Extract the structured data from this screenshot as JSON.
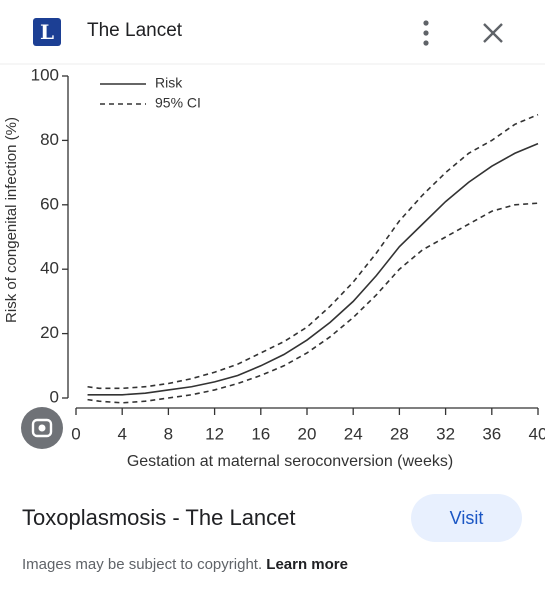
{
  "header": {
    "logo_letter": "L",
    "source": "The Lancet"
  },
  "chart_data": {
    "type": "line",
    "xlabel": "Gestation at maternal seroconversion (weeks)",
    "ylabel": "Risk of congenital infection (%)",
    "x": [
      1,
      2,
      4,
      6,
      8,
      10,
      12,
      14,
      16,
      18,
      20,
      22,
      24,
      26,
      28,
      30,
      32,
      34,
      36,
      38,
      40
    ],
    "series": [
      {
        "name": "Risk",
        "color": "#333333",
        "style": "solid",
        "values": [
          1,
          1,
          1,
          1.5,
          2.5,
          3.5,
          5,
          7,
          10,
          13.5,
          18,
          23.5,
          30,
          38,
          47,
          54,
          61,
          67,
          72,
          76,
          79
        ]
      },
      {
        "name": "95% CI",
        "color": "#333333",
        "style": "dashed",
        "values": [
          3.5,
          3,
          3,
          3.5,
          4.5,
          6,
          8,
          10.5,
          14,
          17.5,
          22,
          28.5,
          36,
          45,
          55,
          63,
          70,
          76,
          80,
          85,
          88
        ],
        "lower": [
          -0.5,
          -1,
          -1.5,
          -1,
          0,
          1,
          2.5,
          4.5,
          7,
          10,
          14,
          19,
          25,
          32,
          40,
          46,
          50,
          54,
          58,
          60,
          60.5
        ]
      }
    ],
    "xlim": [
      0,
      40
    ],
    "xticks": [
      0,
      4,
      8,
      12,
      16,
      20,
      24,
      28,
      32,
      36,
      40
    ],
    "ylim": [
      0,
      100
    ],
    "yticks": [
      0,
      20,
      40,
      60,
      80,
      100
    ],
    "grid": false,
    "legend": "upper-left"
  },
  "footer": {
    "title": "Toxoplasmosis - The Lancet",
    "button": "Visit",
    "notice": "Images may be subject to copyright.",
    "link": "Learn more"
  }
}
